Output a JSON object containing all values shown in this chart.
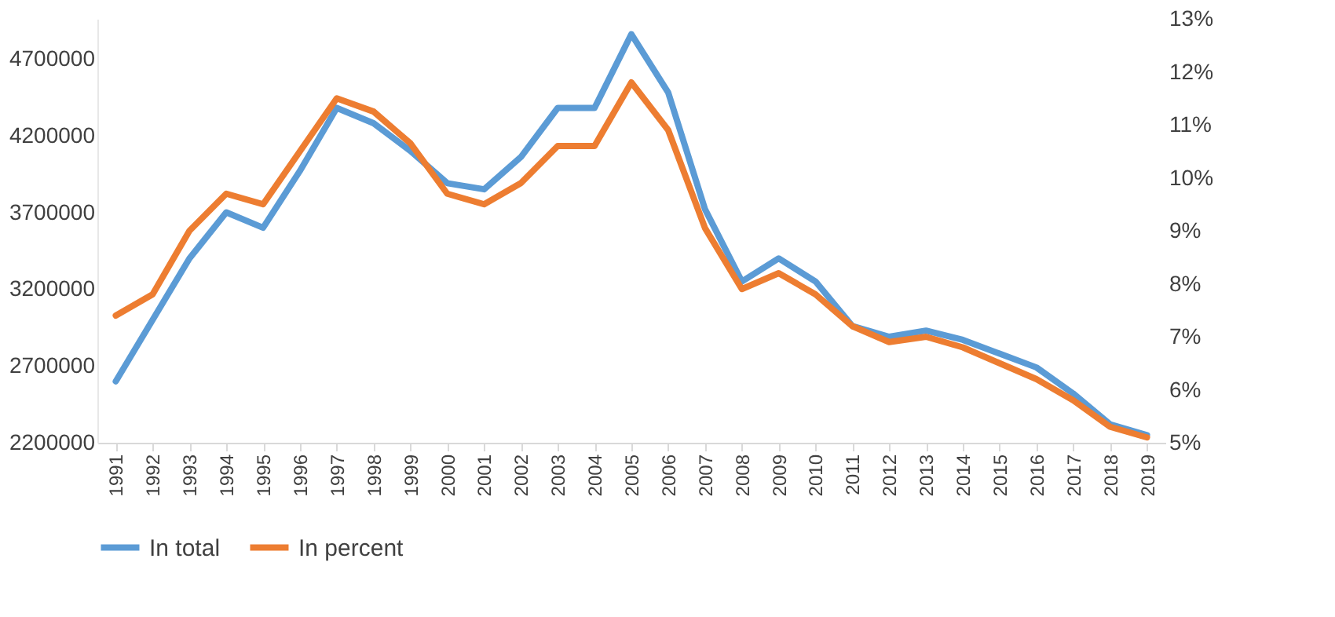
{
  "chart_data": {
    "type": "line",
    "categories": [
      "1991",
      "1992",
      "1993",
      "1994",
      "1995",
      "1996",
      "1997",
      "1998",
      "1999",
      "2000",
      "2001",
      "2002",
      "2003",
      "2004",
      "2005",
      "2006",
      "2007",
      "2008",
      "2009",
      "2010",
      "2011",
      "2012",
      "2013",
      "2014",
      "2015",
      "2016",
      "2017",
      "2018",
      "2019"
    ],
    "series": [
      {
        "name": "In total",
        "color": "#5b9bd5",
        "values": [
          2600000,
          3000000,
          3400000,
          3700000,
          3600000,
          3970000,
          4380000,
          4280000,
          4100000,
          3890000,
          3850000,
          4060000,
          4380000,
          4380000,
          4860000,
          4480000,
          3720000,
          3250000,
          3400000,
          3250000,
          2960000,
          2890000,
          2930000,
          2870000,
          2780000,
          2690000,
          2520000,
          2320000,
          2250000
        ]
      },
      {
        "name": "In percent",
        "color": "#ed7d31",
        "axis": "y2",
        "values": [
          7.4,
          7.8,
          9.0,
          9.7,
          9.5,
          10.5,
          11.5,
          11.25,
          10.65,
          9.7,
          9.5,
          9.9,
          10.6,
          10.6,
          11.8,
          10.9,
          9.05,
          7.9,
          8.2,
          7.8,
          7.2,
          6.9,
          7.0,
          6.8,
          6.5,
          6.2,
          5.8,
          5.3,
          5.1
        ]
      }
    ],
    "ylim": [
      2200000,
      4960000
    ],
    "yticks": [
      2200000,
      2700000,
      3200000,
      3700000,
      4200000,
      4700000
    ],
    "y2lim": [
      5,
      13
    ],
    "y2ticks": [
      {
        "value": 5,
        "label": "5%"
      },
      {
        "value": 6,
        "label": "6%"
      },
      {
        "value": 7,
        "label": "7%"
      },
      {
        "value": 8,
        "label": "8%"
      },
      {
        "value": 9,
        "label": "9%"
      },
      {
        "value": 10,
        "label": "10%"
      },
      {
        "value": 11,
        "label": "11%"
      },
      {
        "value": 12,
        "label": "12%"
      },
      {
        "value": 13,
        "label": "13%"
      }
    ],
    "grid": false,
    "legend": "bottom"
  }
}
